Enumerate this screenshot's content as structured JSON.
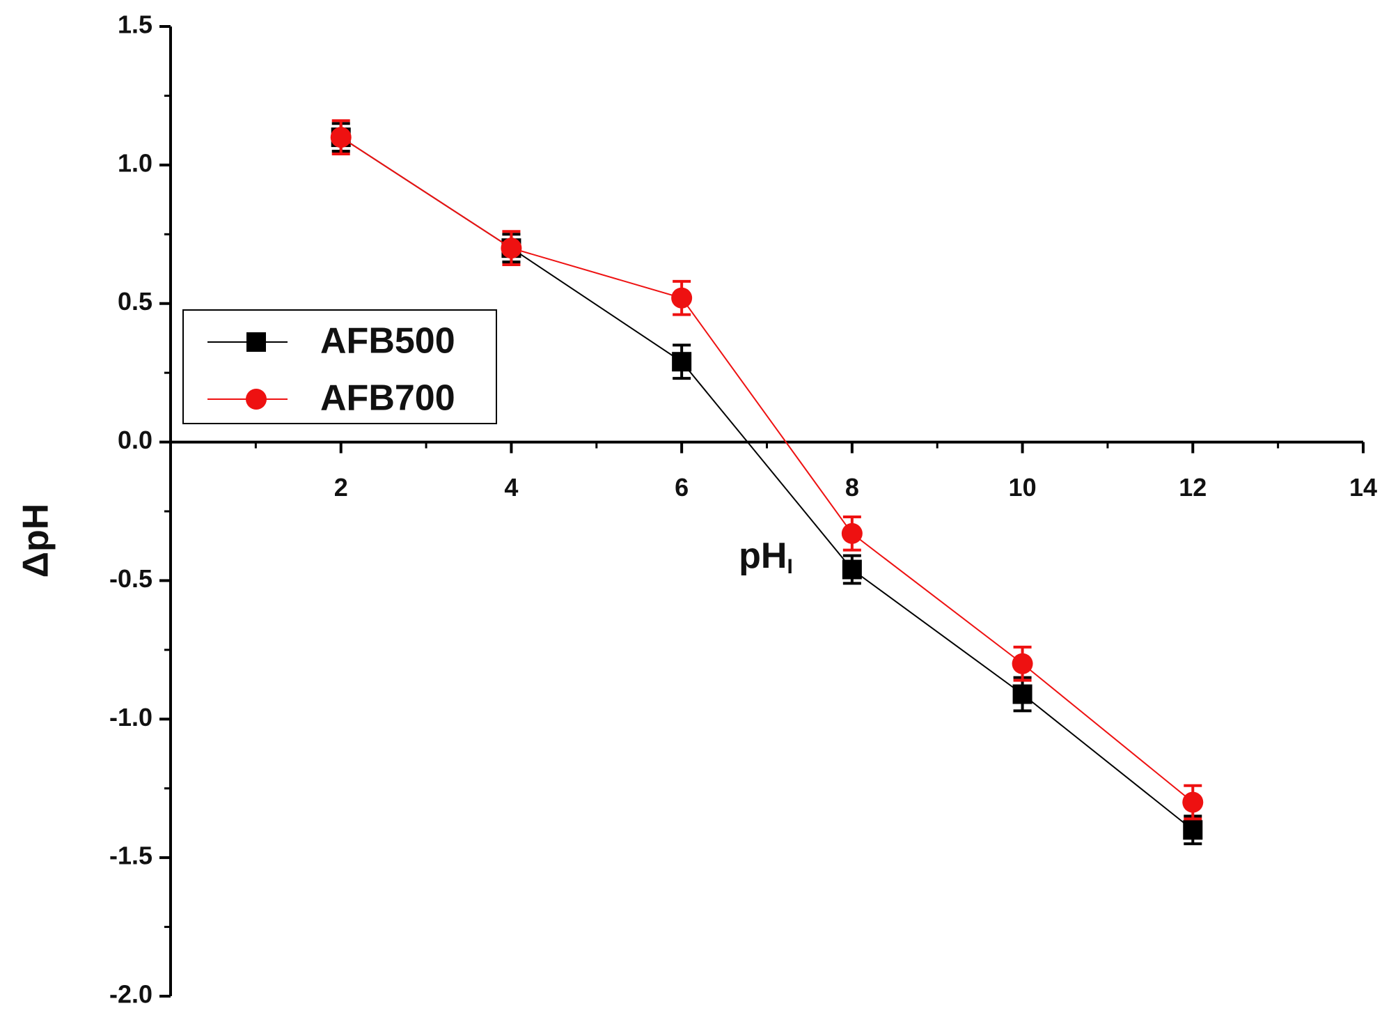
{
  "chart_data": {
    "type": "line",
    "x_label": {
      "text": "pH",
      "subscript": "I"
    },
    "y_label": "ΔpH",
    "x": [
      2,
      4,
      6,
      8,
      10,
      12
    ],
    "series": [
      {
        "name": "AFB500",
        "color": "#000000",
        "marker": "square",
        "values": [
          1.1,
          0.7,
          0.29,
          -0.46,
          -0.91,
          -1.4
        ],
        "errors": [
          0.05,
          0.05,
          0.06,
          0.05,
          0.06,
          0.05
        ]
      },
      {
        "name": "AFB700",
        "color": "#ee1111",
        "marker": "circle",
        "values": [
          1.1,
          0.7,
          0.52,
          -0.33,
          -0.8,
          -1.3
        ],
        "errors": [
          0.06,
          0.06,
          0.06,
          0.06,
          0.06,
          0.06
        ]
      }
    ],
    "xlim": [
      0,
      14
    ],
    "xticks": [
      2,
      4,
      6,
      8,
      10,
      12,
      14
    ],
    "xminor_ticks": [
      1,
      3,
      5,
      7,
      9,
      11,
      13
    ],
    "ylim": [
      -2,
      1.5
    ],
    "yticks": [
      {
        "value": -2,
        "label": "-2.0"
      },
      {
        "value": -1.5,
        "label": "-1.5"
      },
      {
        "value": -1,
        "label": "-1.0"
      },
      {
        "value": -0.5,
        "label": "-0.5"
      },
      {
        "value": 0,
        "label": "0.0"
      },
      {
        "value": 0.5,
        "label": "0.5"
      },
      {
        "value": 1,
        "label": "1.0"
      },
      {
        "value": 1.5,
        "label": "1.5"
      }
    ],
    "yminor_ticks": [
      -1.75,
      -1.25,
      -0.75,
      -0.25,
      0.25,
      0.75,
      1.25
    ],
    "legend": "upper-left"
  }
}
